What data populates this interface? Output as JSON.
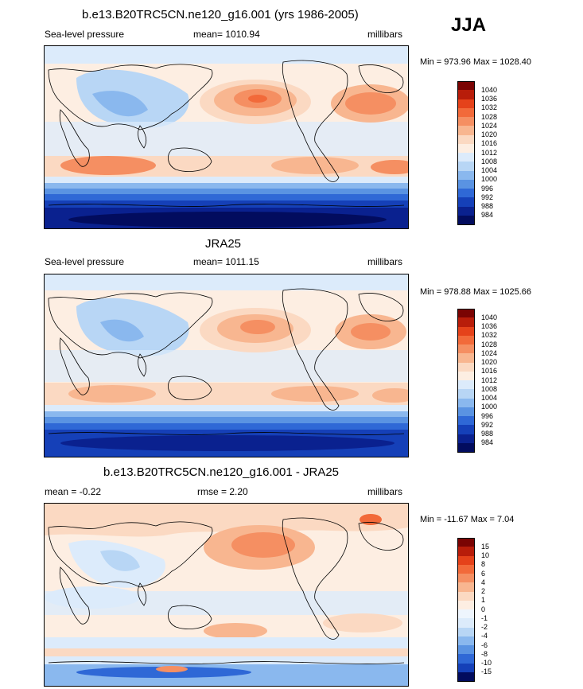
{
  "season": "JJA",
  "panels": [
    {
      "title": "b.e13.B20TRC5CN.ne120_g16.001 (yrs 1986-2005)",
      "left_label": "Sea-level pressure",
      "center_label": "mean= 1010.94",
      "right_label": "millibars",
      "minmax": "Min = 973.96 Max = 1028.40",
      "colorbar": {
        "labels": [
          "1040",
          "1036",
          "1032",
          "1028",
          "1024",
          "1020",
          "1016",
          "1012",
          "1008",
          "1004",
          "1000",
          "996",
          "992",
          "988",
          "984"
        ],
        "colors": [
          "#7a0403",
          "#b81d0a",
          "#e5421a",
          "#f26a3a",
          "#f58f62",
          "#f8b690",
          "#fbd9c2",
          "#fdeee2",
          "#dcebfb",
          "#b8d6f5",
          "#8ab8ee",
          "#5a93e2",
          "#2f68d6",
          "#1540b8",
          "#0a218f",
          "#020c5e"
        ]
      }
    },
    {
      "title": "JRA25",
      "left_label": "Sea-level pressure",
      "center_label": "mean= 1011.15",
      "right_label": "millibars",
      "minmax": "Min = 978.88 Max = 1025.66",
      "colorbar": {
        "labels": [
          "1040",
          "1036",
          "1032",
          "1028",
          "1024",
          "1020",
          "1016",
          "1012",
          "1008",
          "1004",
          "1000",
          "996",
          "992",
          "988",
          "984"
        ],
        "colors": [
          "#7a0403",
          "#b81d0a",
          "#e5421a",
          "#f26a3a",
          "#f58f62",
          "#f8b690",
          "#fbd9c2",
          "#fdeee2",
          "#dcebfb",
          "#b8d6f5",
          "#8ab8ee",
          "#5a93e2",
          "#2f68d6",
          "#1540b8",
          "#0a218f",
          "#020c5e"
        ]
      }
    },
    {
      "title": "b.e13.B20TRC5CN.ne120_g16.001 - JRA25",
      "left_label": "mean =  -0.22",
      "center_label": "rmse =   2.20",
      "right_label": "millibars",
      "minmax": "Min = -11.67 Max =   7.04",
      "colorbar": {
        "labels": [
          "15",
          "10",
          "8",
          "6",
          "4",
          "2",
          "1",
          "0",
          "-1",
          "-2",
          "-4",
          "-6",
          "-8",
          "-10",
          "-15"
        ],
        "colors": [
          "#7a0403",
          "#b81d0a",
          "#e5421a",
          "#f26a3a",
          "#f58f62",
          "#f8b690",
          "#fbd9c2",
          "#fdeee2",
          "#eef5fd",
          "#dcebfb",
          "#b8d6f5",
          "#8ab8ee",
          "#5a93e2",
          "#2f68d6",
          "#1540b8",
          "#020c5e"
        ]
      }
    }
  ]
}
